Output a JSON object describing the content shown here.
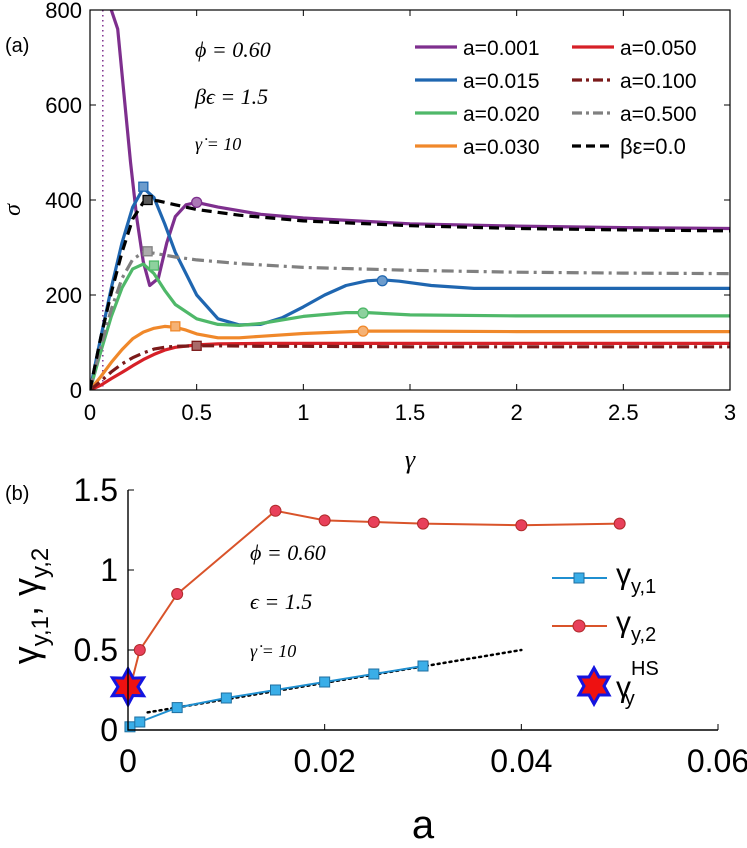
{
  "chart_data": [
    {
      "type": "line",
      "panel_label": "(a)",
      "xlabel": "γ",
      "ylabel": "σ",
      "xlim": [
        0,
        3
      ],
      "ylim": [
        0,
        800
      ],
      "xticks": [
        0,
        0.5,
        1,
        1.5,
        2,
        2.5,
        3
      ],
      "xtick_labels": [
        "0",
        "0.5",
        "1",
        "1.5",
        "2",
        "2.5",
        "3"
      ],
      "yticks": [
        0,
        200,
        400,
        600,
        800
      ],
      "ytick_labels": [
        "0",
        "200",
        "400",
        "600",
        "800"
      ],
      "grid": false,
      "legend_position": "top-right",
      "vertical_reference_line": {
        "x": 0.06,
        "color": "#7e2f8e",
        "style": "dotted"
      },
      "annotations": {
        "phi": "ϕ = 0.60",
        "beps": "βϵ = 1.5",
        "rate": "γ̇ = 10"
      },
      "series": [
        {
          "name": "a=0.001",
          "color": "#7e2f8e",
          "style": "solid",
          "x": [
            0.1,
            0.13,
            0.16,
            0.19,
            0.22,
            0.25,
            0.28,
            0.32,
            0.36,
            0.4,
            0.45,
            0.5,
            0.6,
            0.8,
            1.0,
            1.5,
            2.0,
            2.5,
            3.0
          ],
          "y": [
            800,
            760,
            620,
            480,
            360,
            270,
            220,
            235,
            310,
            365,
            390,
            395,
            385,
            370,
            362,
            350,
            345,
            342,
            340
          ],
          "markers": [
            {
              "x": 0.5,
              "y": 395,
              "shape": "circle"
            }
          ]
        },
        {
          "name": "a=0.015",
          "color": "#1f66b0",
          "style": "solid",
          "x": [
            0,
            0.05,
            0.1,
            0.15,
            0.2,
            0.25,
            0.3,
            0.35,
            0.4,
            0.5,
            0.6,
            0.7,
            0.8,
            0.9,
            1.0,
            1.1,
            1.2,
            1.3,
            1.37,
            1.45,
            1.6,
            1.8,
            2.0,
            2.5,
            3.0
          ],
          "y": [
            0,
            110,
            215,
            310,
            385,
            425,
            405,
            350,
            290,
            200,
            150,
            137,
            138,
            152,
            175,
            200,
            220,
            230,
            232,
            229,
            220,
            214,
            214,
            214,
            214
          ],
          "markers": [
            {
              "x": 0.25,
              "y": 428,
              "shape": "square"
            },
            {
              "x": 1.37,
              "y": 230,
              "shape": "circle"
            }
          ]
        },
        {
          "name": "a=0.020",
          "color": "#4fb869",
          "style": "solid",
          "x": [
            0,
            0.05,
            0.1,
            0.15,
            0.2,
            0.25,
            0.3,
            0.35,
            0.4,
            0.5,
            0.6,
            0.7,
            0.8,
            1.0,
            1.2,
            1.3,
            1.5,
            2.0,
            2.5,
            3.0
          ],
          "y": [
            0,
            80,
            155,
            215,
            255,
            265,
            245,
            210,
            180,
            150,
            138,
            136,
            140,
            155,
            163,
            163,
            158,
            156,
            156,
            156
          ],
          "markers": [
            {
              "x": 0.3,
              "y": 262,
              "shape": "square"
            },
            {
              "x": 1.28,
              "y": 162,
              "shape": "circle"
            }
          ]
        },
        {
          "name": "a=0.030",
          "color": "#f0882a",
          "style": "solid",
          "x": [
            0,
            0.05,
            0.1,
            0.15,
            0.2,
            0.25,
            0.3,
            0.35,
            0.4,
            0.45,
            0.5,
            0.6,
            0.7,
            0.8,
            1.0,
            1.28,
            1.5,
            2.0,
            2.5,
            3.0
          ],
          "y": [
            0,
            28,
            58,
            85,
            108,
            122,
            130,
            134,
            132,
            126,
            118,
            110,
            110,
            113,
            119,
            124,
            124,
            123,
            123,
            123
          ],
          "markers": [
            {
              "x": 0.4,
              "y": 134,
              "shape": "square"
            },
            {
              "x": 1.28,
              "y": 124,
              "shape": "circle"
            }
          ]
        },
        {
          "name": "a=0.050",
          "color": "#d62027",
          "style": "solid",
          "x": [
            0,
            0.05,
            0.1,
            0.15,
            0.2,
            0.25,
            0.3,
            0.35,
            0.4,
            0.5,
            0.6,
            0.8,
            1.0,
            1.5,
            2.0,
            2.5,
            3.0
          ],
          "y": [
            0,
            10,
            24,
            37,
            51,
            64,
            75,
            84,
            90,
            95,
            97,
            98,
            98,
            98,
            98,
            98,
            98
          ],
          "markers": []
        },
        {
          "name": "a=0.100",
          "color": "#7b1a1a",
          "style": "dashdot",
          "x": [
            0,
            0.05,
            0.1,
            0.15,
            0.2,
            0.25,
            0.3,
            0.35,
            0.4,
            0.5,
            0.6,
            0.8,
            1.0,
            1.5,
            2.0,
            2.5,
            3.0
          ],
          "y": [
            0,
            18,
            38,
            55,
            68,
            78,
            86,
            90,
            92,
            93,
            93,
            92,
            92,
            91,
            91,
            91,
            91
          ],
          "markers": [
            {
              "x": 0.5,
              "y": 93,
              "shape": "square"
            }
          ]
        },
        {
          "name": "a=0.500",
          "color": "#808080",
          "style": "dashdot",
          "x": [
            0,
            0.05,
            0.1,
            0.15,
            0.2,
            0.25,
            0.3,
            0.4,
            0.5,
            0.7,
            1.0,
            1.5,
            2.0,
            2.5,
            3.0
          ],
          "y": [
            0,
            90,
            170,
            235,
            275,
            290,
            288,
            280,
            274,
            266,
            258,
            252,
            248,
            246,
            245
          ],
          "markers": [
            {
              "x": 0.27,
              "y": 292,
              "shape": "square"
            }
          ]
        },
        {
          "name": "βε=0.0",
          "color": "#000000",
          "style": "dashed",
          "x": [
            0,
            0.05,
            0.1,
            0.15,
            0.2,
            0.25,
            0.28,
            0.32,
            0.4,
            0.5,
            0.7,
            1.0,
            1.5,
            2.0,
            2.5,
            3.0
          ],
          "y": [
            0,
            110,
            205,
            290,
            360,
            395,
            400,
            398,
            390,
            380,
            368,
            356,
            346,
            340,
            337,
            335
          ],
          "markers": [
            {
              "x": 0.27,
              "y": 400,
              "shape": "square"
            }
          ]
        }
      ]
    },
    {
      "type": "line",
      "panel_label": "(b)",
      "xlabel": "a",
      "ylabel": "γy,1, γy,2",
      "xlim": [
        0,
        0.06
      ],
      "ylim": [
        0,
        1.5
      ],
      "xticks": [
        0,
        0.02,
        0.04,
        0.06
      ],
      "xtick_labels": [
        "0",
        "0.02",
        "0.04",
        "0.06"
      ],
      "yticks": [
        0,
        0.5,
        1,
        1.5
      ],
      "ytick_labels": [
        "0",
        "0.5",
        "1",
        "1.5"
      ],
      "grid": false,
      "legend_position": "right",
      "annotations": {
        "phi": "ϕ = 0.60",
        "eps": "ϵ = 1.5",
        "rate": "γ̇ = 10"
      },
      "legend_labels": {
        "y1_base": "γ",
        "y1_sub": "y,1",
        "y2_base": "γ",
        "y2_sub": "y,2",
        "hs_base": "γ",
        "hs_sub": "y",
        "hs_sup": "HS"
      },
      "series": [
        {
          "name": "γy,1",
          "color": "#1f8fd0",
          "marker": "square",
          "x": [
            0.0002,
            0.0012,
            0.005,
            0.01,
            0.015,
            0.02,
            0.025,
            0.03
          ],
          "y": [
            0.02,
            0.05,
            0.14,
            0.2,
            0.25,
            0.3,
            0.35,
            0.4
          ]
        },
        {
          "name": "γy,2",
          "color": "#d9532a",
          "marker": "circle",
          "x": [
            0.0002,
            0.0012,
            0.005,
            0.015,
            0.02,
            0.025,
            0.03,
            0.04,
            0.05
          ],
          "y": [
            0.26,
            0.5,
            0.85,
            1.37,
            1.31,
            1.3,
            1.29,
            1.28,
            1.29
          ]
        },
        {
          "name": "γy HS",
          "color": "#1414e0",
          "marker": "hexagram",
          "x": [
            0
          ],
          "y": [
            0.27
          ]
        },
        {
          "name": "fit",
          "color": "#000000",
          "style": "dotted",
          "x": [
            0.002,
            0.04
          ],
          "y": [
            0.11,
            0.5
          ]
        }
      ]
    }
  ]
}
